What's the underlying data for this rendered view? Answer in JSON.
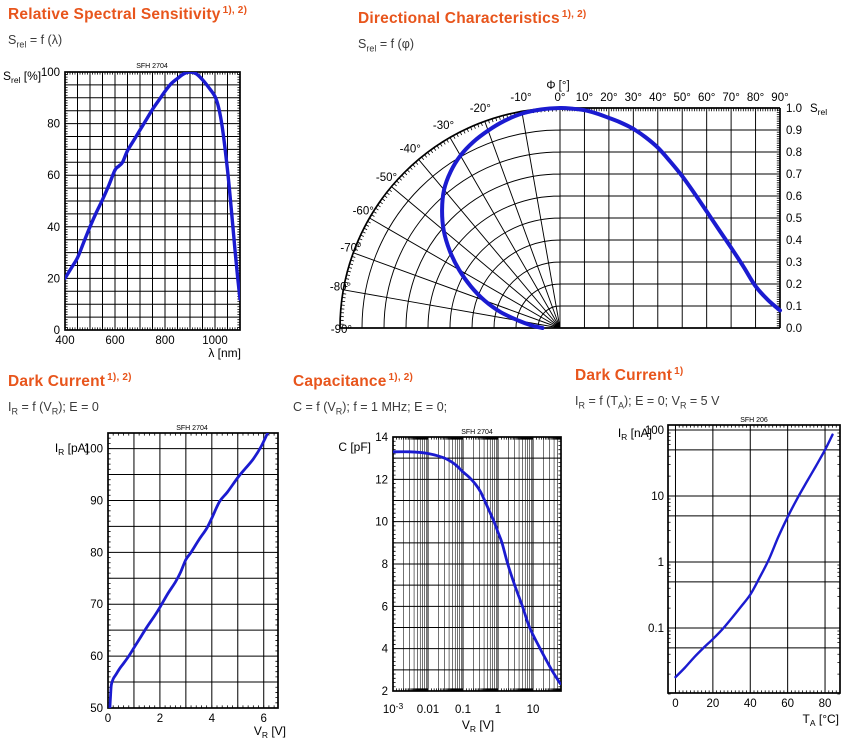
{
  "page": {
    "accent_color": "#E8551C",
    "curve_color": "#1b1bd0",
    "grid_color": "#000000",
    "watermark_color": "#aaaaaa"
  },
  "charts": [
    {
      "id": "spectral-sensitivity",
      "title": "Relative Spectral Sensitivity",
      "title_sup": "1), 2)",
      "subtitle_segments": [
        [
          "S",
          "rel"
        ],
        [
          " = f (λ)"
        ]
      ],
      "watermark": "SFH 2704",
      "chart_data": {
        "type": "line",
        "x_axis": {
          "label_segments": [
            [
              "λ [nm]"
            ]
          ],
          "min": 400,
          "max": 1100,
          "grid_step": 50,
          "tick_labels": [
            {
              "v": 400,
              "label": "400"
            },
            {
              "v": 600,
              "label": "600"
            },
            {
              "v": 800,
              "label": "800"
            },
            {
              "v": 1000,
              "label": "1000"
            }
          ]
        },
        "y_axis": {
          "label_segments": [
            [
              "S",
              "rel"
            ],
            [
              " [%]"
            ]
          ],
          "min": 0,
          "max": 100,
          "grid_step": 5,
          "tick_labels": [
            {
              "v": 0,
              "label": "0"
            },
            {
              "v": 20,
              "label": "20"
            },
            {
              "v": 40,
              "label": "40"
            },
            {
              "v": 60,
              "label": "60"
            },
            {
              "v": 80,
              "label": "80"
            },
            {
              "v": 100,
              "label": "100"
            }
          ]
        },
        "series": [
          {
            "name": "relative spectral sensitivity",
            "points": [
              [
                400,
                20
              ],
              [
                425,
                24
              ],
              [
                450,
                28
              ],
              [
                475,
                34
              ],
              [
                500,
                40
              ],
              [
                525,
                45.5
              ],
              [
                550,
                50.5
              ],
              [
                575,
                56
              ],
              [
                600,
                62
              ],
              [
                615,
                63.5
              ],
              [
                630,
                65
              ],
              [
                650,
                69.5
              ],
              [
                675,
                73.5
              ],
              [
                700,
                77.5
              ],
              [
                725,
                81.5
              ],
              [
                750,
                85.5
              ],
              [
                775,
                89
              ],
              [
                800,
                92.5
              ],
              [
                825,
                95.5
              ],
              [
                850,
                97.5
              ],
              [
                875,
                99.3
              ],
              [
                900,
                100
              ],
              [
                925,
                99.3
              ],
              [
                950,
                97
              ],
              [
                975,
                94
              ],
              [
                1000,
                90.5
              ],
              [
                1015,
                86
              ],
              [
                1030,
                78
              ],
              [
                1050,
                62
              ],
              [
                1065,
                47
              ],
              [
                1080,
                31
              ],
              [
                1090,
                21
              ],
              [
                1100,
                12
              ]
            ]
          }
        ]
      }
    },
    {
      "id": "directional",
      "title": "Directional Characteristics",
      "title_sup": "1), 2)",
      "subtitle_segments": [
        [
          "S",
          "rel"
        ],
        [
          " = f (φ)"
        ]
      ],
      "chart_data": {
        "type": "polar-cartesian",
        "angle_axis": {
          "label_segments": [
            [
              "Φ [°]"
            ]
          ],
          "min_deg": -90,
          "max_deg": 90,
          "step_deg": 10,
          "pos_tick_labels": [
            "0°",
            "10°",
            "20°",
            "30°",
            "40°",
            "50°",
            "60°",
            "70°",
            "80°",
            "90°"
          ],
          "neg_tick_labels": [
            "-10°",
            "-20°",
            "-30°",
            "-40°",
            "-50°",
            "-60°",
            "-70°",
            "-80°",
            "-90°"
          ]
        },
        "radial_axis": {
          "label_segments": [
            [
              "S",
              "rel"
            ]
          ],
          "min": 0,
          "max": 1,
          "grid_step": 0.1,
          "tick_labels": [
            "1.0",
            "0.9",
            "0.8",
            "0.7",
            "0.6",
            "0.5",
            "0.4",
            "0.3",
            "0.2",
            "0.1",
            "0.0"
          ]
        },
        "series": [
          {
            "name": "relative sensitivity vs angle",
            "symmetric": true,
            "points": [
              [
                0,
                1.0
              ],
              [
                5,
                0.997
              ],
              [
                10,
                0.99
              ],
              [
                15,
                0.975
              ],
              [
                20,
                0.955
              ],
              [
                25,
                0.933
              ],
              [
                30,
                0.905
              ],
              [
                35,
                0.867
              ],
              [
                40,
                0.82
              ],
              [
                45,
                0.758
              ],
              [
                50,
                0.69
              ],
              [
                55,
                0.612
              ],
              [
                60,
                0.53
              ],
              [
                65,
                0.447
              ],
              [
                70,
                0.365
              ],
              [
                75,
                0.28
              ],
              [
                80,
                0.19
              ],
              [
                85,
                0.128
              ],
              [
                90,
                0.08
              ]
            ]
          }
        ]
      }
    },
    {
      "id": "dark-current-voltage",
      "title": "Dark Current",
      "title_sup": "1), 2)",
      "subtitle_segments": [
        [
          "I",
          "R"
        ],
        [
          " = f (V",
          "R"
        ],
        [
          "); E = 0"
        ]
      ],
      "watermark": "SFH 2704",
      "chart_data": {
        "type": "line",
        "x_axis": {
          "label_segments": [
            [
              "V",
              "R"
            ],
            [
              " [V]"
            ]
          ],
          "min": 0,
          "max": 6.55,
          "grid_step": 1,
          "tick_labels": [
            {
              "v": 0,
              "label": "0"
            },
            {
              "v": 2,
              "label": "2"
            },
            {
              "v": 4,
              "label": "4"
            },
            {
              "v": 6,
              "label": "6"
            }
          ]
        },
        "y_axis": {
          "label_segments": [
            [
              "I",
              "R"
            ],
            [
              " [pA]"
            ]
          ],
          "min": 50,
          "max": 103,
          "grid_step": 5,
          "tick_labels": [
            {
              "v": 50,
              "label": "50"
            },
            {
              "v": 60,
              "label": "60"
            },
            {
              "v": 70,
              "label": "70"
            },
            {
              "v": 80,
              "label": "80"
            },
            {
              "v": 90,
              "label": "90"
            },
            {
              "v": 100,
              "label": "100"
            }
          ]
        },
        "series": [
          {
            "name": "dark current vs reverse voltage",
            "points": [
              [
                0.07,
                49.8
              ],
              [
                0.1,
                52.5
              ],
              [
                0.13,
                54.5
              ],
              [
                0.2,
                55.6
              ],
              [
                0.3,
                56.4
              ],
              [
                0.45,
                57.6
              ],
              [
                0.6,
                58.6
              ],
              [
                0.8,
                60
              ],
              [
                1,
                61.6
              ],
              [
                1.2,
                63.2
              ],
              [
                1.5,
                65.6
              ],
              [
                1.8,
                67.8
              ],
              [
                2,
                69.4
              ],
              [
                2.3,
                72
              ],
              [
                2.6,
                74.3
              ],
              [
                2.8,
                76.2
              ],
              [
                3,
                78.6
              ],
              [
                3.2,
                80
              ],
              [
                3.5,
                82.4
              ],
              [
                3.8,
                84.6
              ],
              [
                4,
                86.6
              ],
              [
                4.3,
                89.8
              ],
              [
                4.6,
                91.6
              ],
              [
                5,
                94.4
              ],
              [
                5.3,
                96.2
              ],
              [
                5.6,
                98
              ],
              [
                5.9,
                100.4
              ],
              [
                6.15,
                103
              ]
            ]
          }
        ]
      }
    },
    {
      "id": "capacitance",
      "title": "Capacitance",
      "title_sup": "1), 2)",
      "subtitle_segments": [
        [
          "C = f (V",
          "R"
        ],
        [
          "); f = 1 MHz; E = 0;"
        ]
      ],
      "watermark": "SFH 2704",
      "chart_data": {
        "type": "line",
        "x_axis": {
          "scale": "log",
          "label_segments": [
            [
              "V",
              "R"
            ],
            [
              " [V]"
            ]
          ],
          "min": 0.001,
          "max": 60,
          "tick_labels": [
            {
              "v": 0.001,
              "label": "10^-3"
            },
            {
              "v": 0.01,
              "label": "0.01"
            },
            {
              "v": 0.1,
              "label": "0.1"
            },
            {
              "v": 1,
              "label": "1"
            },
            {
              "v": 10,
              "label": "10"
            }
          ]
        },
        "y_axis": {
          "label_segments": [
            [
              "C [pF]"
            ]
          ],
          "min": 2,
          "max": 14,
          "grid_step": 1,
          "tick_labels": [
            {
              "v": 14,
              "label": "14"
            },
            {
              "v": 12,
              "label": "12"
            },
            {
              "v": 10,
              "label": "10"
            },
            {
              "v": 8,
              "label": "8"
            },
            {
              "v": 6,
              "label": "6"
            },
            {
              "v": 4,
              "label": "4"
            },
            {
              "v": 2,
              "label": "2"
            }
          ]
        },
        "series": [
          {
            "name": "capacitance vs reverse voltage",
            "points": [
              [
                0.001,
                13.3
              ],
              [
                0.003,
                13.3
              ],
              [
                0.006,
                13.27
              ],
              [
                0.01,
                13.22
              ],
              [
                0.02,
                13.1
              ],
              [
                0.035,
                12.95
              ],
              [
                0.06,
                12.7
              ],
              [
                0.1,
                12.35
              ],
              [
                0.15,
                12.1
              ],
              [
                0.22,
                11.8
              ],
              [
                0.32,
                11.4
              ],
              [
                0.5,
                10.7
              ],
              [
                0.77,
                10
              ],
              [
                1,
                9.5
              ],
              [
                1.3,
                9
              ],
              [
                1.9,
                8
              ],
              [
                3,
                7
              ],
              [
                5,
                6
              ],
              [
                8,
                5
              ],
              [
                16,
                4
              ],
              [
                25,
                3.4
              ],
              [
                34,
                3
              ],
              [
                48,
                2.6
              ],
              [
                60,
                2.35
              ]
            ]
          }
        ]
      }
    },
    {
      "id": "dark-current-temperature",
      "title": "Dark Current",
      "title_sup": "1)",
      "subtitle_segments": [
        [
          "I",
          "R"
        ],
        [
          " = f (T",
          "A"
        ],
        [
          "); E = 0; V",
          "R"
        ],
        [
          " = 5 V"
        ]
      ],
      "watermark": "SFH 206",
      "chart_data": {
        "type": "line",
        "x_axis": {
          "label_segments": [
            [
              "T",
              "A"
            ],
            [
              " [°C]"
            ]
          ],
          "min": -4,
          "max": 88,
          "grid_step": 20,
          "grid_values": [
            0,
            20,
            40,
            60,
            80
          ],
          "tick_labels": [
            {
              "v": 0,
              "label": "0"
            },
            {
              "v": 20,
              "label": "20"
            },
            {
              "v": 40,
              "label": "40"
            },
            {
              "v": 60,
              "label": "60"
            },
            {
              "v": 80,
              "label": "80"
            }
          ]
        },
        "y_axis": {
          "scale": "log",
          "label_segments": [
            [
              "I",
              "R"
            ],
            [
              " [nA]"
            ]
          ],
          "min": 0.01,
          "max": 120,
          "grid_values": [
            0.05,
            0.1,
            0.5,
            1,
            5,
            10,
            50,
            100
          ],
          "tick_labels": [
            {
              "v": 100,
              "label": "100"
            },
            {
              "v": 10,
              "label": "10"
            },
            {
              "v": 1,
              "label": "1"
            },
            {
              "v": 0.1,
              "label": "0.1"
            }
          ]
        },
        "series": [
          {
            "name": "dark current vs ambient temperature",
            "points": [
              [
                0,
                0.018
              ],
              [
                5,
                0.025
              ],
              [
                10,
                0.036
              ],
              [
                15,
                0.05
              ],
              [
                20,
                0.068
              ],
              [
                25,
                0.095
              ],
              [
                30,
                0.14
              ],
              [
                35,
                0.21
              ],
              [
                40,
                0.32
              ],
              [
                45,
                0.58
              ],
              [
                50,
                1.1
              ],
              [
                55,
                2.4
              ],
              [
                60,
                4.8
              ],
              [
                65,
                9
              ],
              [
                70,
                16
              ],
              [
                75,
                28
              ],
              [
                80,
                50
              ],
              [
                84,
                85
              ]
            ]
          }
        ]
      }
    }
  ]
}
